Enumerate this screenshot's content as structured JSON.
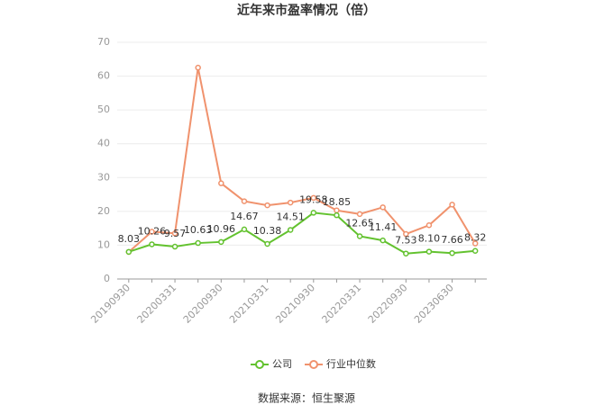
{
  "chart_data": {
    "type": "line",
    "title": "近年来市盈率情况（倍）",
    "categories": [
      "20190930",
      null,
      "20200331",
      null,
      "20200930",
      null,
      "20210331",
      null,
      "20210930",
      null,
      "20220331",
      null,
      "20220930",
      null,
      "20230630",
      null
    ],
    "series": [
      {
        "name": "公司",
        "color": "#63c22f",
        "values": [
          8.03,
          10.26,
          9.57,
          10.63,
          10.96,
          14.67,
          10.38,
          14.51,
          19.58,
          18.85,
          12.65,
          11.41,
          7.53,
          8.1,
          7.66,
          8.32
        ],
        "value_labels": [
          "8.03",
          "10.26",
          "9.57",
          "10.63",
          "10.96",
          "14.67",
          "10.38",
          "14.51",
          "19.58",
          "18.85",
          "12.65",
          "11.41",
          "7.53",
          "8.10",
          "7.66",
          "8.32"
        ]
      },
      {
        "name": "行业中位数",
        "color": "#f0926d",
        "values": [
          8.0,
          14.0,
          13.5,
          62.5,
          28.3,
          23.0,
          21.8,
          22.6,
          24.0,
          20.3,
          19.2,
          21.2,
          13.3,
          15.9,
          22.0,
          10.5
        ]
      }
    ],
    "ylim": [
      0,
      70
    ],
    "yticks": [
      0,
      10,
      20,
      30,
      40,
      50,
      60,
      70
    ],
    "grid": true,
    "source": "数据来源：恒生聚源"
  }
}
